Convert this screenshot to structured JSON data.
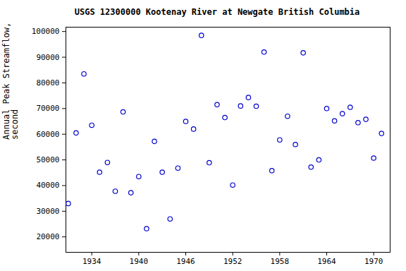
{
  "chart_data": {
    "type": "scatter",
    "title": "USGS 12300000 Kootenay River at Newgate British Columbia",
    "y_label": "Annual Peak Streamflow, in cubic feet per second",
    "x": [
      1931,
      1932,
      1933,
      1934,
      1935,
      1936,
      1937,
      1938,
      1939,
      1940,
      1941,
      1942,
      1943,
      1944,
      1945,
      1946,
      1947,
      1948,
      1949,
      1950,
      1951,
      1952,
      1953,
      1954,
      1955,
      1956,
      1957,
      1958,
      1959,
      1960,
      1961,
      1962,
      1963,
      1964,
      1965,
      1966,
      1967,
      1968,
      1969,
      1970,
      1971
    ],
    "values": [
      33000,
      60500,
      83500,
      63500,
      45200,
      49000,
      37800,
      68700,
      37200,
      43500,
      23200,
      57200,
      45200,
      27000,
      46800,
      65000,
      62000,
      98500,
      48900,
      71500,
      66500,
      40200,
      71000,
      74300,
      70900,
      92000,
      45800,
      57800,
      67000,
      56000,
      91700,
      47200,
      50000,
      70000,
      65200,
      68000,
      70500,
      64500,
      65800,
      50700,
      60300
    ],
    "color": "#0000cc",
    "marker": "open_circle",
    "xlim": [
      1930.7,
      1972.1
    ],
    "xticks": [
      1934,
      1940,
      1946,
      1952,
      1958,
      1964,
      1970
    ],
    "ylim": [
      14000,
      101700
    ],
    "yticks": [
      20000,
      30000,
      40000,
      50000,
      60000,
      70000,
      80000,
      90000,
      100000
    ],
    "grid": false
  }
}
